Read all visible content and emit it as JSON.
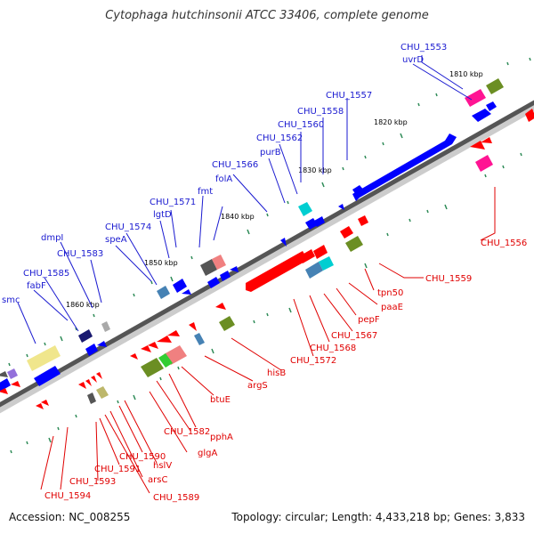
{
  "title": "Cytophaga hutchinsonii ATCC 33406, complete genome",
  "accession_text": "Accession: NC_008255",
  "summary_text": "Topology: circular; Length: 4,433,218 bp; Genes: 3,833",
  "colors": {
    "backbone_dark": "#555555",
    "backbone_light": "#cccccc",
    "forward_label": "#1a1ad0",
    "reverse_label": "#e00000",
    "blue_gene": "#0000ff",
    "red_gene": "#ff0000",
    "olive_gene": "#6b8e23",
    "pink_gene": "#ff1493",
    "teal_gene": "#00ced1",
    "khaki_gene": "#f0e68c",
    "tick_green": "#2e8b57"
  },
  "scale_labels": [
    "1810 kbp",
    "1820 kbp",
    "1830 kbp",
    "1840 kbp",
    "1850 kbp",
    "1860 kbp"
  ],
  "forward_labels": [
    "CHU_1553",
    "uvrD",
    "CHU_1557",
    "CHU_1558",
    "CHU_1560",
    "CHU_1562",
    "purB",
    "CHU_1566",
    "folA",
    "fmt",
    "CHU_1571",
    "lgtD",
    "CHU_1574",
    "speA",
    "CHU_1583",
    "dmpI",
    "CHU_1585",
    "fabF",
    "smc"
  ],
  "reverse_labels": [
    "CHU_1556",
    "CHU_1559",
    "tpn50",
    "paaE",
    "pepF",
    "CHU_1567",
    "CHU_1568",
    "CHU_1572",
    "hisB",
    "argS",
    "btuE",
    "pphA",
    "CHU_1582",
    "glgA",
    "hslV",
    "CHU_1590",
    "arsC",
    "CHU_1589",
    "CHU_1591",
    "CHU_1593",
    "CHU_1594"
  ]
}
